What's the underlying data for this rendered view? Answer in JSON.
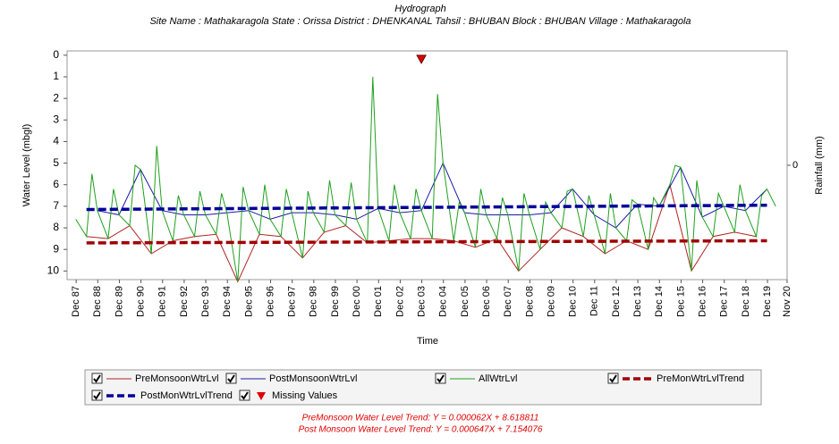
{
  "chart_data": {
    "type": "line",
    "title": "Hydrograph",
    "subtitle": "Site Name : Mathakaragola  State : Orissa District : DHENKANAL  Tahsil : BHUBAN  Block : BHUBAN Village : Mathakaragola",
    "xlabel": "Time",
    "ylabel": "Water Level (mbgl)",
    "y2label": "Rainfall (mm)",
    "yinverted": true,
    "ylim": [
      -0.2,
      10.4
    ],
    "yticks": [
      0,
      1,
      2,
      3,
      4,
      5,
      6,
      7,
      8,
      9,
      10
    ],
    "y2lim": [
      -1,
      1
    ],
    "y2ticks": [
      0
    ],
    "xlim": [
      1987.5,
      2020.83
    ],
    "xticks": [
      {
        "value": 1987.92,
        "label": "Dec 87"
      },
      {
        "value": 1988.92,
        "label": "Dec 88"
      },
      {
        "value": 1989.92,
        "label": "Dec 89"
      },
      {
        "value": 1990.92,
        "label": "Dec 90"
      },
      {
        "value": 1991.92,
        "label": "Dec 91"
      },
      {
        "value": 1992.92,
        "label": "Dec 92"
      },
      {
        "value": 1993.92,
        "label": "Dec 93"
      },
      {
        "value": 1994.92,
        "label": "Dec 94"
      },
      {
        "value": 1995.92,
        "label": "Dec 95"
      },
      {
        "value": 1996.92,
        "label": "Dec 96"
      },
      {
        "value": 1997.92,
        "label": "Dec 97"
      },
      {
        "value": 1998.92,
        "label": "Dec 98"
      },
      {
        "value": 1999.92,
        "label": "Dec 99"
      },
      {
        "value": 2000.92,
        "label": "Dec 00"
      },
      {
        "value": 2001.92,
        "label": "Dec 01"
      },
      {
        "value": 2002.92,
        "label": "Dec 02"
      },
      {
        "value": 2003.92,
        "label": "Dec 03"
      },
      {
        "value": 2004.92,
        "label": "Dec 04"
      },
      {
        "value": 2005.92,
        "label": "Dec 05"
      },
      {
        "value": 2006.92,
        "label": "Dec 06"
      },
      {
        "value": 2007.92,
        "label": "Dec 07"
      },
      {
        "value": 2008.92,
        "label": "Dec 08"
      },
      {
        "value": 2009.92,
        "label": "Dec 09"
      },
      {
        "value": 2010.92,
        "label": "Dec 10"
      },
      {
        "value": 2011.92,
        "label": "Dec 11"
      },
      {
        "value": 2012.92,
        "label": "Dec 12"
      },
      {
        "value": 2013.92,
        "label": "Dec 13"
      },
      {
        "value": 2014.92,
        "label": "Dec 14"
      },
      {
        "value": 2015.92,
        "label": "Dec 15"
      },
      {
        "value": 2016.92,
        "label": "Dec 16"
      },
      {
        "value": 2017.92,
        "label": "Dec 17"
      },
      {
        "value": 2018.92,
        "label": "Dec 18"
      },
      {
        "value": 2019.92,
        "label": "Dec 19"
      },
      {
        "value": 2020.83,
        "label": "Nov 20"
      }
    ],
    "series": [
      {
        "name": "PreMonsoonWtrLvl",
        "color": "#b22222",
        "style": "line",
        "x": [
          1988.4,
          1989.4,
          1990.4,
          1991.4,
          1992.4,
          1993.4,
          1994.4,
          1995.4,
          1996.4,
          1997.4,
          1998.4,
          1999.4,
          2000.4,
          2001.4,
          2002.4,
          2003.4,
          2004.4,
          2005.4,
          2006.4,
          2007.4,
          2008.4,
          2009.4,
          2010.4,
          2011.4,
          2012.4,
          2013.4,
          2014.4,
          2015.4,
          2016.4,
          2017.4,
          2018.4,
          2019.4
        ],
        "values": [
          8.4,
          8.5,
          7.9,
          9.2,
          8.6,
          8.4,
          8.3,
          10.5,
          8.3,
          8.4,
          9.4,
          8.2,
          7.9,
          8.7,
          8.6,
          8.5,
          8.5,
          8.6,
          8.9,
          8.5,
          10.0,
          9.0,
          8.0,
          8.4,
          9.2,
          8.6,
          9.0,
          6.0,
          10.0,
          8.4,
          8.2,
          8.4
        ]
      },
      {
        "name": "PostMonsoonWtrLvl",
        "color": "#1a1aa6",
        "style": "line",
        "x": [
          1988.9,
          1989.9,
          1990.9,
          1991.9,
          1992.9,
          1993.9,
          1994.9,
          1995.9,
          1996.9,
          1997.9,
          1998.9,
          1999.9,
          2000.9,
          2001.9,
          2002.9,
          2003.9,
          2004.9,
          2005.9,
          2006.9,
          2007.9,
          2008.9,
          2009.9,
          2010.9,
          2011.9,
          2012.9,
          2013.9,
          2014.9,
          2015.9,
          2016.9,
          2017.9,
          2018.9,
          2019.9
        ],
        "values": [
          7.2,
          7.4,
          5.3,
          7.2,
          7.4,
          7.4,
          7.3,
          7.2,
          7.6,
          7.3,
          7.3,
          7.4,
          7.6,
          7.1,
          7.3,
          7.2,
          5.0,
          7.3,
          7.4,
          7.4,
          7.4,
          7.3,
          6.2,
          7.4,
          8.0,
          6.9,
          7.0,
          5.2,
          7.5,
          7.0,
          7.2,
          6.2
        ]
      },
      {
        "name": "AllWtrLvl",
        "color": "#1fa01f",
        "style": "line",
        "x": [
          1987.9,
          1988.4,
          1988.65,
          1988.9,
          1989.4,
          1989.65,
          1989.9,
          1990.4,
          1990.65,
          1990.9,
          1991.4,
          1991.65,
          1991.9,
          1992.4,
          1992.65,
          1992.9,
          1993.4,
          1993.65,
          1993.9,
          1994.4,
          1994.65,
          1994.9,
          1995.4,
          1995.65,
          1995.9,
          1996.4,
          1996.65,
          1996.9,
          1997.4,
          1997.65,
          1997.9,
          1998.4,
          1998.65,
          1998.9,
          1999.4,
          1999.65,
          1999.9,
          2000.4,
          2000.65,
          2000.9,
          2001.4,
          2001.65,
          2001.9,
          2002.4,
          2002.65,
          2002.9,
          2003.4,
          2003.65,
          2003.9,
          2004.4,
          2004.65,
          2004.9,
          2005.4,
          2005.65,
          2005.9,
          2006.4,
          2006.65,
          2006.9,
          2007.4,
          2007.65,
          2007.9,
          2008.4,
          2008.65,
          2008.9,
          2009.4,
          2009.65,
          2009.9,
          2010.4,
          2010.65,
          2010.9,
          2011.4,
          2011.65,
          2011.9,
          2012.4,
          2012.65,
          2012.9,
          2013.4,
          2013.65,
          2013.9,
          2014.4,
          2014.65,
          2014.9,
          2015.4,
          2015.65,
          2015.9,
          2016.4,
          2016.65,
          2016.9,
          2017.4,
          2017.65,
          2017.9,
          2018.4,
          2018.65,
          2018.9,
          2019.4,
          2019.65,
          2019.9,
          2020.3
        ],
        "values": [
          7.6,
          8.4,
          5.5,
          7.2,
          8.5,
          6.2,
          7.4,
          7.9,
          5.1,
          5.3,
          9.2,
          4.2,
          7.2,
          8.6,
          6.5,
          7.4,
          8.4,
          6.3,
          7.4,
          8.3,
          6.4,
          7.3,
          10.5,
          6.1,
          7.2,
          8.3,
          6.0,
          7.6,
          8.4,
          6.2,
          7.3,
          9.4,
          6.3,
          7.3,
          8.2,
          5.8,
          7.4,
          7.9,
          5.9,
          7.6,
          8.7,
          1.0,
          7.1,
          8.6,
          6.0,
          7.3,
          8.5,
          6.2,
          7.2,
          8.5,
          1.8,
          5.0,
          8.6,
          6.8,
          7.3,
          8.9,
          6.2,
          7.4,
          8.5,
          6.6,
          7.4,
          10.0,
          6.4,
          7.4,
          9.0,
          6.8,
          7.3,
          8.0,
          6.3,
          6.2,
          8.4,
          6.5,
          7.4,
          9.2,
          6.4,
          8.0,
          8.6,
          6.7,
          6.9,
          9.0,
          6.6,
          7.0,
          6.0,
          5.1,
          5.2,
          10.0,
          5.8,
          7.5,
          8.4,
          6.4,
          7.0,
          8.2,
          6.0,
          7.2,
          8.4,
          6.5,
          6.2,
          7.0
        ]
      },
      {
        "name": "PreMonWtrLvlTrend",
        "color": "#a00000",
        "style": "dashed",
        "x": [
          1988.4,
          2019.9
        ],
        "values": [
          8.7,
          8.6
        ]
      },
      {
        "name": "PostMonWtrLvlTrend",
        "color": "#000099",
        "style": "dashed",
        "x": [
          1988.4,
          2019.9
        ],
        "values": [
          7.15,
          6.95
        ]
      },
      {
        "name": "Missing Values",
        "color": "#e00000",
        "style": "marker",
        "x": [
          2003.9
        ],
        "values": [
          0
        ]
      }
    ],
    "annotations": [
      "PreMonsoon Water Level Trend: Y = 0.000062X + 8.618811",
      "Post Monsoon Water Level Trend: Y = 0.000647X + 7.154076"
    ]
  }
}
